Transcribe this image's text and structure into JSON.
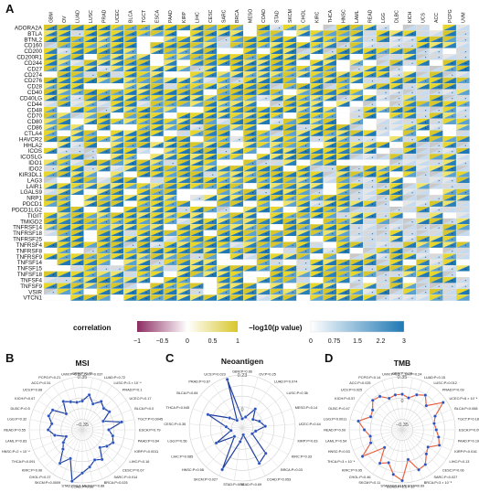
{
  "panels": {
    "a": "A",
    "b": "B",
    "c": "C",
    "d": "D"
  },
  "heatmap": {
    "cancers": [
      "GBM",
      "OV",
      "LUAD",
      "LUSC",
      "PRAD",
      "UCEC",
      "BLCA",
      "TGCT",
      "ESCA",
      "PAAD",
      "KIRP",
      "LIHC",
      "CESC",
      "SARC",
      "BRCA",
      "MESO",
      "COAD",
      "STAD",
      "SKCM",
      "CHOL",
      "KIRC",
      "THCA",
      "HNSC",
      "LAML",
      "READ",
      "LGG",
      "DLBC",
      "KICH",
      "UCS",
      "ACC",
      "PCPG",
      "UVM"
    ],
    "genes": [
      "ADORA2A",
      "BTLA",
      "BTNL2",
      "CD160",
      "CD200",
      "CD200R1",
      "CD244",
      "CD27",
      "CD274",
      "CD276",
      "CD28",
      "CD40",
      "CD40LG",
      "CD44",
      "CD48",
      "CD70",
      "CD80",
      "CD86",
      "CTLA4",
      "HAVCR2",
      "HHLA2",
      "ICOS",
      "ICOSLG",
      "IDO1",
      "IDO2",
      "KIR3DL1",
      "LAG3",
      "LAIR1",
      "LGALS9",
      "NRP1",
      "PDCD1",
      "PDCD1LG2",
      "TIGIT",
      "TMIGD2",
      "TNFRSF14",
      "TNFRSF18",
      "TNFRSF25",
      "TNFRSF4",
      "TNFRSF8",
      "TNFRSF9",
      "TNFSF14",
      "TNFSF15",
      "TNFSF18",
      "TNFSF4",
      "TNFSF9",
      "VSIR",
      "VTCN1"
    ],
    "legend_correlation": {
      "title": "correlation",
      "ticks": [
        "−1",
        "−0.5",
        "0",
        "0.5",
        "1"
      ],
      "colors": [
        "#8c2d62",
        "#ffffff",
        "#d9c62b"
      ]
    },
    "legend_pvalue": {
      "title": "−log10(p value)",
      "ticks": [
        "0",
        "0.75",
        "1.5",
        "2.2",
        "3"
      ],
      "colors": [
        "#ffffff",
        "#1f78b4"
      ]
    }
  },
  "chart_data": [
    {
      "type": "radar",
      "title": "MSI",
      "scale_labels": [
        "0.35",
        "0",
        "−0.35"
      ],
      "rmin": -0.35,
      "rmax": 0.35,
      "line_color": "#1f3f9e",
      "labels": [
        "GBM:P=0.72",
        "OV:P=0.037",
        "LUAD:P=0.72",
        "LUSC:P=3 × 10⁻⁴",
        "PRAD:P=0.1",
        "UCEC:P=0.17",
        "BLCA:P=0.0",
        "TGCT:P=0.0045",
        "ESCA:P=0.79",
        "PAAD:P=0.64",
        "KIRP:P=0.0011",
        "LIHC:P=0.16",
        "CESC:P=0.67",
        "SARC:P=0.014",
        "BRCA:P=0.025",
        "MESO:P=0.88",
        "COAD:P=0.96",
        "STAD:P=0.0",
        "SKCM:P=0.0009",
        "CHOL:P=0.27",
        "KIRC:P=0.96",
        "THCA:P=0.091",
        "HNSC:P=2 × 10⁻⁴",
        "LAML:P=0.83",
        "READ:P=0.55",
        "LGG:P=0.32",
        "DLBC:P=0.5",
        "KICH:P=0.67",
        "UCS:P=0.68",
        "ACC:P=0.51",
        "PCPG:P=0.21",
        "UVM:P=0.78"
      ],
      "values": [
        0.03,
        0.12,
        0.02,
        0.1,
        0.05,
        0.08,
        -0.05,
        0.18,
        0.0,
        0.06,
        0.09,
        0.04,
        -0.02,
        0.12,
        0.08,
        0.15,
        0.22,
        0.34,
        0.06,
        0.18,
        0.01,
        -0.05,
        -0.12,
        0.02,
        0.1,
        0.06,
        0.13,
        0.12,
        -0.05,
        0.1,
        0.05,
        0.02
      ]
    },
    {
      "type": "radar",
      "title": "Neoantigen",
      "scale_labels": [
        "0.23",
        "0"
      ],
      "rmin": 0,
      "rmax": 0.23,
      "line_color": "#1f3f9e",
      "labels": [
        "GBM:P=0.66",
        "OV:P=0.25",
        "LUAD:P=0.074",
        "LUSC:P=0.36",
        "MESO:P=0.14",
        "UCEC:P=0.44",
        "KIRP:P=0.63",
        "KIRC:P=0.33",
        "BRCA:P=0.03",
        "COAD:P=0.053",
        "READ:P=0.69",
        "STAD:P=0.18",
        "SKCM:P=0.027",
        "HNSC:P=0.58",
        "LIHC:P=0.085",
        "LGG:P=0.56",
        "CESC:P=0.35",
        "THCA:P=0.045",
        "BLCA:P=0.84",
        "PRAD:P=0.67",
        "UCS:P=0.023"
      ],
      "values": [
        0.04,
        0.05,
        0.1,
        0.06,
        0.08,
        0.1,
        0.06,
        0.05,
        0.15,
        0.17,
        0.03,
        0.06,
        0.2,
        0.05,
        0.13,
        0.05,
        0.07,
        0.16,
        0.07,
        0.04,
        0.22
      ]
    },
    {
      "type": "radar",
      "title": "TMB",
      "scale_labels": [
        "0.35",
        "0",
        "−0.35"
      ],
      "rmin": -0.35,
      "rmax": 0.35,
      "line_color": "#e8623f",
      "labels": [
        "GBM:P=0.16",
        "OV:P=0.24",
        "LUAD:P=0.15",
        "LUSC:P=0.012",
        "PRAD:P=0.09",
        "UCEC:P=6 × 10⁻⁴",
        "BLCA:P=0.068",
        "TGCT:P=0.18",
        "ESCA:P=0.093",
        "PAAD:P=0.19",
        "KIRP:P=0.016",
        "LIHC:P=0.13",
        "CESC:P=0.06",
        "SARC:P=0.027",
        "BRCA:P=3 × 10⁻⁵",
        "MESO:P=0.69",
        "COAD:P=1.1 × 10⁻⁶",
        "STAD:P=0.01",
        "SKCM:P=0.11",
        "CHOL:P=0.46",
        "KIRC:P=0.95",
        "THCA:P=3 × 10⁻⁴",
        "HNSC:P=0.53",
        "LAML:P=0.54",
        "READ:P=0.09",
        "LGG:P=0.0011",
        "DLBC:P=0.47",
        "KICH:P=0.57",
        "UCS:P=0.025",
        "ACC:P=0.025",
        "PCPG:P=0.14",
        "UVM:P=0.2"
      ],
      "values": [
        0.12,
        0.08,
        0.15,
        0.2,
        0.1,
        0.3,
        0.12,
        0.08,
        0.1,
        0.14,
        0.18,
        0.06,
        0.1,
        0.2,
        0.22,
        0.05,
        0.32,
        0.25,
        0.12,
        0.18,
        -0.02,
        0.28,
        0.1,
        0.08,
        0.15,
        0.24,
        0.1,
        0.12,
        0.2,
        0.18,
        0.1,
        0.12
      ]
    }
  ]
}
